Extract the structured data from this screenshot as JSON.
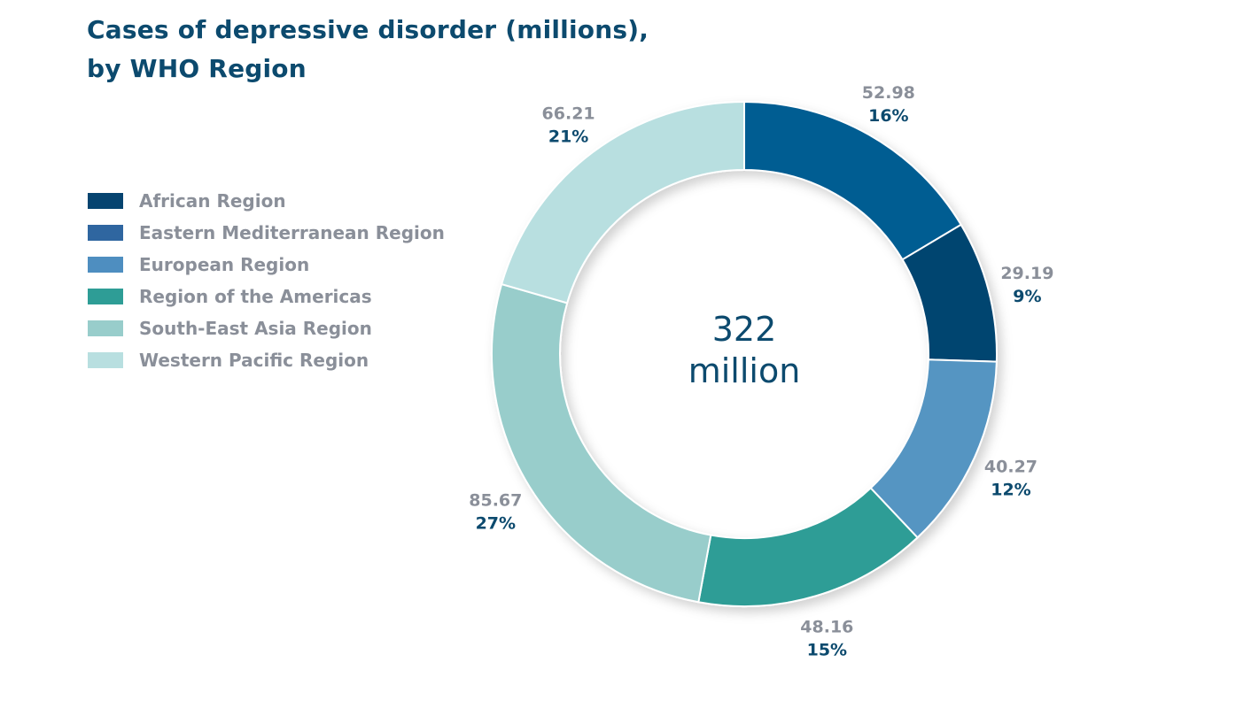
{
  "title": {
    "line1": "Cases of depressive disorder (millions),",
    "line2": "by WHO Region"
  },
  "center": {
    "line1": "322",
    "line2": "million"
  },
  "chart_data": {
    "type": "pie",
    "title": "Cases of depressive disorder (millions), by WHO Region",
    "total_label": "322 million",
    "legend_position": "left",
    "legend": [
      {
        "name": "African Region",
        "color": "#064470"
      },
      {
        "name": "Eastern Mediterranean Region",
        "color": "#2f66a0"
      },
      {
        "name": "European Region",
        "color": "#4e8ec0"
      },
      {
        "name": "Region of the Americas",
        "color": "#2e9d96"
      },
      {
        "name": "South-East Asia Region",
        "color": "#98cdcb"
      },
      {
        "name": "Western Pacific Region",
        "color": "#b8dfe0"
      }
    ],
    "slices": [
      {
        "value": 52.98,
        "value_label": "52.98",
        "percent_label": "16%",
        "color": "#065d92"
      },
      {
        "value": 29.19,
        "value_label": "29.19",
        "percent_label": "9%",
        "color": "#064470"
      },
      {
        "value": 40.27,
        "value_label": "40.27",
        "percent_label": "12%",
        "color": "#5595c2"
      },
      {
        "value": 48.16,
        "value_label": "48.16",
        "percent_label": "15%",
        "color": "#2e9d96"
      },
      {
        "value": 85.67,
        "value_label": "85.67",
        "percent_label": "27%",
        "color": "#98cdcb"
      },
      {
        "value": 66.21,
        "value_label": "66.21",
        "percent_label": "21%",
        "color": "#b8dfe0"
      }
    ]
  }
}
